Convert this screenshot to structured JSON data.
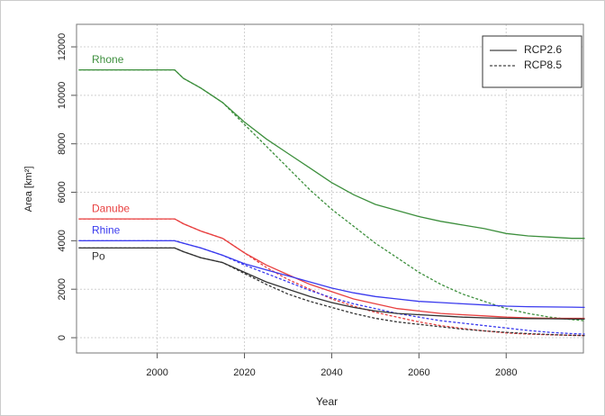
{
  "chart_data": {
    "type": "line",
    "x_label": "Year",
    "y_label": "Area [km²]",
    "xlim": [
      1981.5,
      2097.7
    ],
    "ylim": [
      -630,
      12930
    ],
    "xticks": [
      2000,
      2020,
      2040,
      2060,
      2080
    ],
    "yticks": [
      0,
      2000,
      4000,
      6000,
      8000,
      10000,
      12000
    ],
    "grid": true,
    "legend_position": "top-right",
    "legend": [
      {
        "name": "RCP2.6",
        "dash": "solid"
      },
      {
        "name": "RCP8.5",
        "dash": "dashed"
      }
    ],
    "x": [
      1982,
      1990,
      2000,
      2004,
      2006,
      2010,
      2015,
      2020,
      2025,
      2030,
      2035,
      2040,
      2045,
      2050,
      2055,
      2060,
      2065,
      2070,
      2075,
      2080,
      2085,
      2090,
      2095,
      2098
    ],
    "series": [
      {
        "name": "Rhone",
        "color": "#3d8f3d",
        "lines": [
          {
            "dash": "solid",
            "values": [
              11050,
              11050,
              11050,
              11050,
              10700,
              10300,
              9700,
              8900,
              8200,
              7600,
              7000,
              6400,
              5900,
              5500,
              5250,
              5000,
              4800,
              4650,
              4500,
              4300,
              4200,
              4150,
              4100,
              4100
            ]
          },
          {
            "dash": "dashed",
            "values": [
              11050,
              11050,
              11050,
              11050,
              10700,
              10300,
              9700,
              8800,
              7900,
              7000,
              6100,
              5300,
              4600,
              3900,
              3300,
              2700,
              2200,
              1800,
              1500,
              1200,
              1000,
              850,
              750,
              700
            ]
          }
        ]
      },
      {
        "name": "Danube",
        "color": "#e84040",
        "lines": [
          {
            "dash": "solid",
            "values": [
              4900,
              4900,
              4900,
              4900,
              4700,
              4400,
              4100,
              3500,
              3000,
              2600,
              2200,
              1900,
              1600,
              1400,
              1200,
              1100,
              1000,
              950,
              900,
              850,
              820,
              800,
              800,
              800
            ]
          },
          {
            "dash": "dashed",
            "values": [
              4900,
              4900,
              4900,
              4900,
              4700,
              4400,
              4100,
              3500,
              2900,
              2400,
              2000,
              1600,
              1300,
              1050,
              850,
              650,
              500,
              380,
              280,
              200,
              150,
              120,
              100,
              90
            ]
          }
        ]
      },
      {
        "name": "Rhine",
        "color": "#3a3aee",
        "lines": [
          {
            "dash": "solid",
            "values": [
              4000,
              4000,
              4000,
              4000,
              3900,
              3700,
              3400,
              3050,
              2800,
              2550,
              2300,
              2050,
              1850,
              1700,
              1600,
              1500,
              1450,
              1400,
              1350,
              1300,
              1280,
              1270,
              1260,
              1250
            ]
          },
          {
            "dash": "dashed",
            "values": [
              4000,
              4000,
              4000,
              4000,
              3900,
              3700,
              3400,
              3000,
              2650,
              2300,
              1950,
              1650,
              1400,
              1200,
              1000,
              850,
              700,
              600,
              500,
              400,
              300,
              220,
              170,
              150
            ]
          }
        ]
      },
      {
        "name": "Po",
        "color": "#333333",
        "lines": [
          {
            "dash": "solid",
            "values": [
              3700,
              3700,
              3700,
              3700,
              3550,
              3300,
              3100,
              2700,
              2300,
              2000,
              1700,
              1450,
              1250,
              1100,
              1000,
              950,
              900,
              850,
              820,
              800,
              790,
              780,
              770,
              770
            ]
          },
          {
            "dash": "dashed",
            "values": [
              3700,
              3700,
              3700,
              3700,
              3550,
              3300,
              3100,
              2650,
              2200,
              1800,
              1500,
              1250,
              1000,
              800,
              650,
              550,
              450,
              350,
              280,
              220,
              170,
              130,
              100,
              90
            ]
          }
        ]
      }
    ]
  }
}
